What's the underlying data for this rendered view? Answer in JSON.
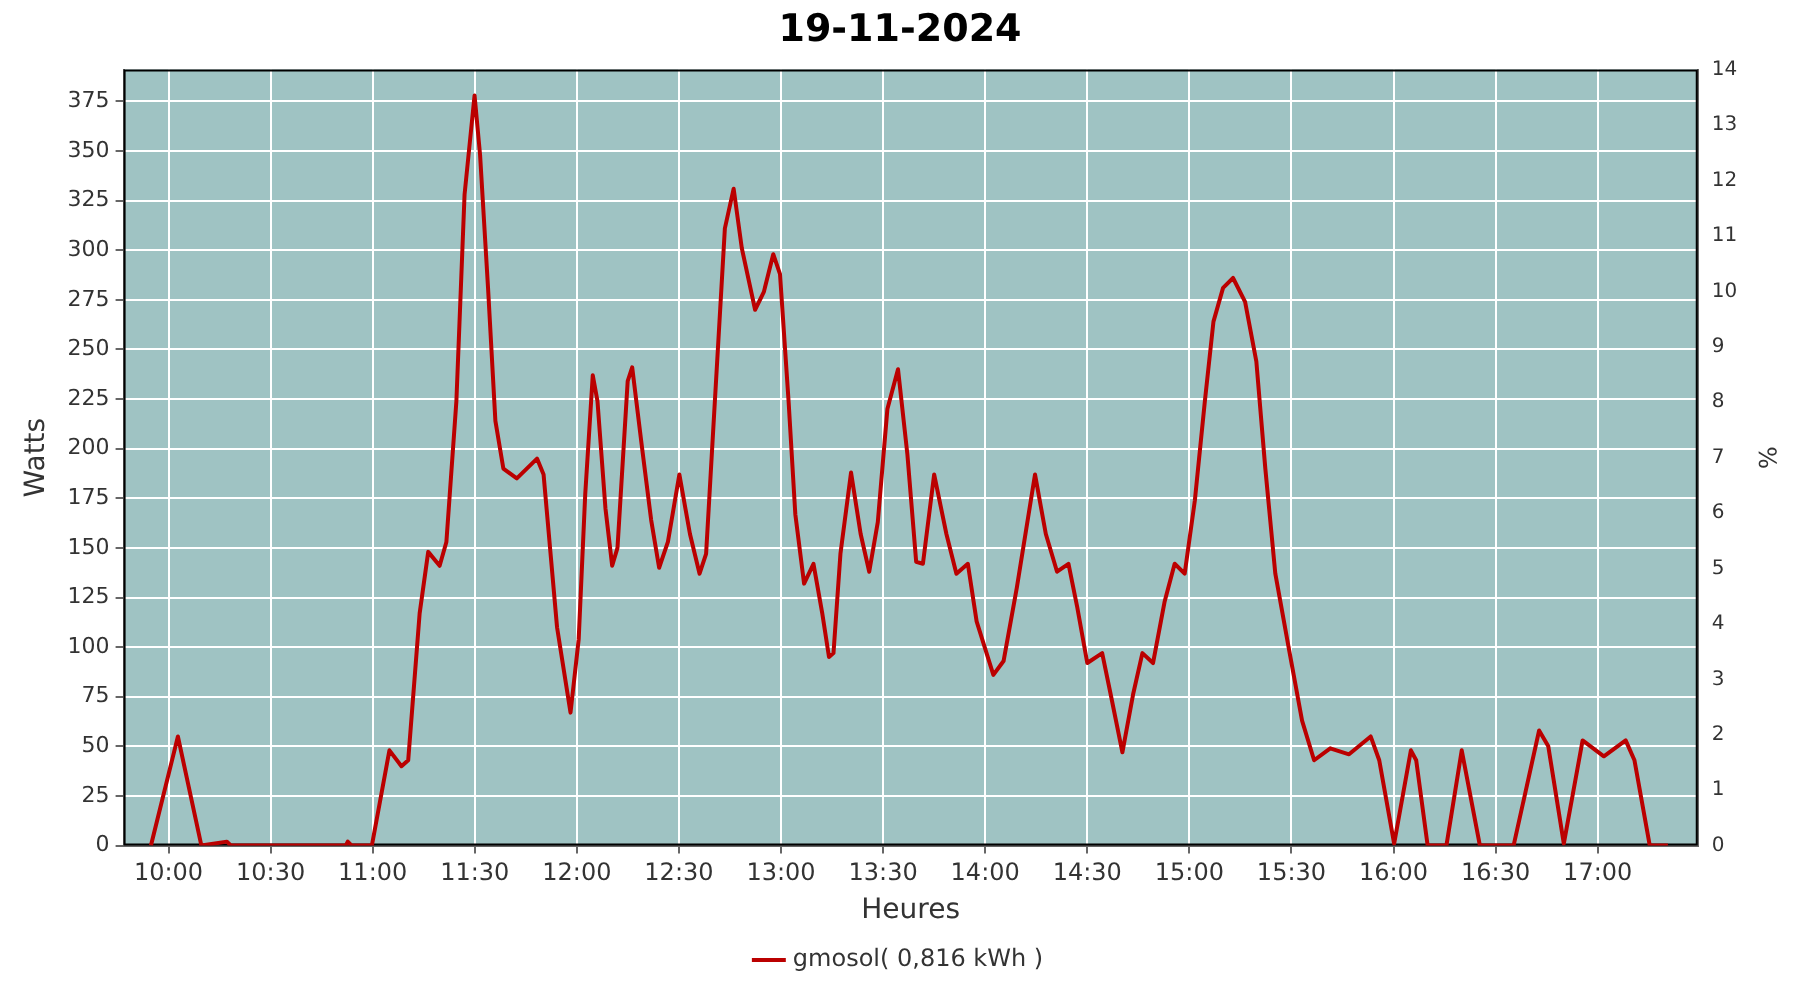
{
  "chart_data": {
    "type": "line",
    "title": "19-11-2024",
    "xlabel": "Heures",
    "ylabel": "Watts",
    "y2label": "%",
    "x": [
      9.914,
      10.046,
      10.161,
      10.286,
      10.306,
      10.868,
      10.878,
      10.897,
      10.996,
      11.082,
      11.141,
      11.174,
      11.23,
      11.272,
      11.328,
      11.361,
      11.41,
      11.45,
      11.499,
      11.526,
      11.565,
      11.601,
      11.64,
      11.706,
      11.805,
      11.837,
      11.903,
      11.969,
      12.009,
      12.041,
      12.078,
      12.101,
      12.14,
      12.173,
      12.199,
      12.249,
      12.271,
      12.315,
      12.364,
      12.403,
      12.446,
      12.502,
      12.554,
      12.601,
      12.633,
      12.676,
      12.725,
      12.768,
      12.808,
      12.873,
      12.916,
      12.962,
      12.995,
      13.037,
      13.07,
      13.113,
      13.159,
      13.202,
      13.235,
      13.257,
      13.291,
      13.343,
      13.39,
      13.432,
      13.474,
      13.521,
      13.573,
      13.619,
      13.662,
      13.695,
      13.75,
      13.81,
      13.859,
      13.915,
      13.958,
      14.04,
      14.09,
      14.155,
      14.244,
      14.297,
      14.352,
      14.408,
      14.451,
      14.5,
      14.573,
      14.615,
      14.672,
      14.724,
      14.77,
      14.822,
      14.879,
      14.928,
      14.977,
      15.027,
      15.076,
      15.118,
      15.165,
      15.214,
      15.273,
      15.328,
      15.372,
      15.421,
      15.486,
      15.552,
      15.611,
      15.69,
      15.782,
      15.888,
      15.93,
      16.003,
      16.085,
      16.111,
      16.167,
      16.259,
      16.334,
      16.423,
      16.588,
      16.713,
      16.758,
      16.834,
      16.926,
      17.03,
      17.137,
      17.18,
      17.255,
      17.344
    ],
    "series": [
      {
        "name": "gmosol( 0,816 kWh )",
        "color": "#bb0000",
        "values": [
          0,
          55,
          0,
          2,
          0,
          0,
          2,
          0,
          0,
          48,
          40,
          43,
          117,
          148,
          141,
          153,
          224,
          328,
          378,
          348,
          281,
          214,
          190,
          185,
          195,
          187,
          110,
          67,
          104,
          177,
          237,
          224,
          170,
          141,
          150,
          234,
          241,
          204,
          164,
          140,
          153,
          187,
          157,
          137,
          147,
          224,
          311,
          331,
          301,
          270,
          279,
          298,
          288,
          224,
          167,
          132,
          142,
          117,
          95,
          97,
          147,
          188,
          157,
          138,
          163,
          220,
          240,
          197,
          143,
          142,
          187,
          157,
          137,
          142,
          113,
          86,
          93,
          130,
          187,
          157,
          138,
          142,
          120,
          92,
          97,
          76,
          47,
          76,
          97,
          92,
          123,
          142,
          137,
          174,
          224,
          264,
          281,
          286,
          274,
          244,
          190,
          137,
          100,
          63,
          43,
          49,
          46,
          55,
          43,
          1,
          48,
          43,
          0,
          0,
          48,
          0,
          0,
          58,
          50,
          1,
          53,
          45,
          53,
          43,
          0,
          0
        ]
      }
    ],
    "xlim": [
      9.78,
      17.49
    ],
    "xticks": [
      {
        "value": 10,
        "label": "10:00"
      },
      {
        "value": 10.5,
        "label": "10:30"
      },
      {
        "value": 11,
        "label": "11:00"
      },
      {
        "value": 11.5,
        "label": "11:30"
      },
      {
        "value": 12,
        "label": "12:00"
      },
      {
        "value": 12.5,
        "label": "12:30"
      },
      {
        "value": 13,
        "label": "13:00"
      },
      {
        "value": 13.5,
        "label": "13:30"
      },
      {
        "value": 14,
        "label": "14:00"
      },
      {
        "value": 14.5,
        "label": "14:30"
      },
      {
        "value": 15,
        "label": "15:00"
      },
      {
        "value": 15.5,
        "label": "15:30"
      },
      {
        "value": 16,
        "label": "16:00"
      },
      {
        "value": 16.5,
        "label": "16:30"
      },
      {
        "value": 17,
        "label": "17:00"
      }
    ],
    "ylim": [
      0,
      391
    ],
    "yticks": [
      0,
      25,
      50,
      75,
      100,
      125,
      150,
      175,
      200,
      225,
      250,
      275,
      300,
      325,
      350,
      375
    ],
    "y2lim": [
      0,
      14
    ],
    "y2ticks": [
      0,
      1,
      2,
      3,
      4,
      5,
      6,
      7,
      8,
      9,
      10,
      11,
      12,
      13,
      14
    ],
    "grid": true,
    "legend": "bottom",
    "marker": "none",
    "line_style": "solid"
  }
}
